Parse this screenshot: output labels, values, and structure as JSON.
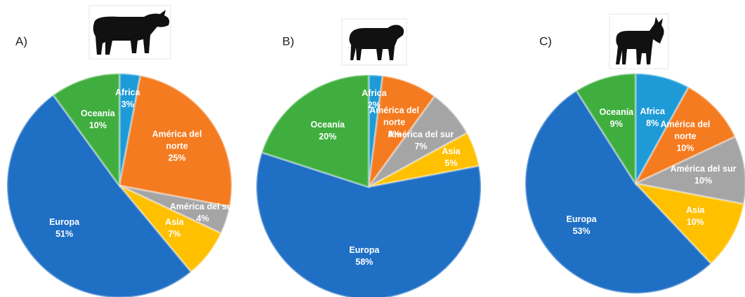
{
  "chart_data": [
    {
      "type": "pie",
      "title": "A)",
      "categories": [
        "Africa",
        "América del norte",
        "América del sur",
        "Asia",
        "Europa",
        "Oceanía"
      ],
      "values": [
        3,
        25,
        4,
        7,
        51,
        10
      ],
      "value_labels": [
        "3%",
        "25%",
        "4%",
        "7%",
        "51%",
        "10%"
      ],
      "colors": [
        "#1e9bd7",
        "#f47b20",
        "#a5a5a5",
        "#ffc000",
        "#1f6fc5",
        "#3fae3f"
      ]
    },
    {
      "type": "pie",
      "title": "B)",
      "categories": [
        "Africa",
        "América del norte",
        "América del sur",
        "Asia",
        "Europa",
        "Oceanía"
      ],
      "values": [
        2,
        8,
        7,
        5,
        58,
        20
      ],
      "value_labels": [
        "2%",
        "8%",
        "7%",
        "5%",
        "58%",
        "20%"
      ],
      "colors": [
        "#1e9bd7",
        "#f47b20",
        "#a5a5a5",
        "#ffc000",
        "#1f6fc5",
        "#3fae3f"
      ]
    },
    {
      "type": "pie",
      "title": "C)",
      "categories": [
        "Africa",
        "América del norte",
        "América del sur",
        "Asia",
        "Europa",
        "Oceanía"
      ],
      "values": [
        8,
        10,
        10,
        10,
        53,
        9
      ],
      "value_labels": [
        "8%",
        "10%",
        "10%",
        "10%",
        "53%",
        "9%"
      ],
      "colors": [
        "#1e9bd7",
        "#f47b20",
        "#a5a5a5",
        "#ffc000",
        "#1f6fc5",
        "#3fae3f"
      ]
    }
  ]
}
